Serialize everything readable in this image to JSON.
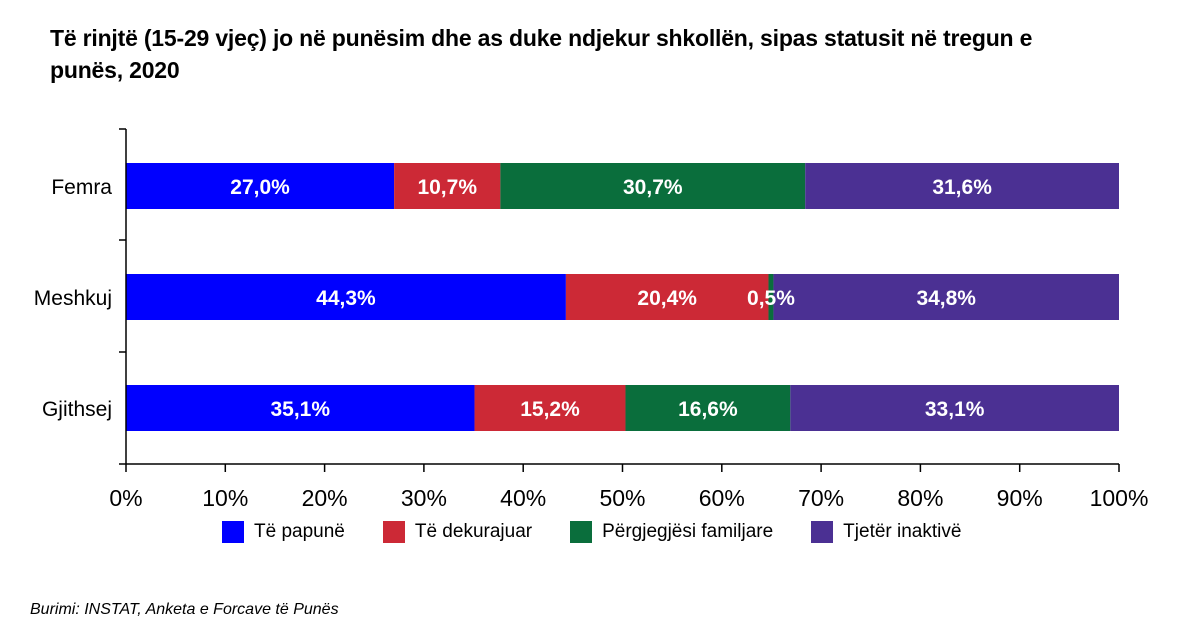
{
  "title": "Të rinjtë (15-29 vjeç) jo në punësim dhe as duke ndjekur shkollën, sipas statusit në tregun e punës, 2020",
  "source": "Burimi: INSTAT, Anketa e Forcave të Punës",
  "colors": {
    "te_papune": "#0000ff",
    "te_dekurajuar": "#cc2936",
    "pergjegjesi_familjare": "#0a6e3c",
    "tjeter_inaktive": "#4b3093"
  },
  "chart_data": {
    "type": "bar",
    "orientation": "horizontal",
    "stacked": true,
    "categories": [
      "Femra",
      "Meshkuj",
      "Gjithsej"
    ],
    "series": [
      {
        "name": "Të papunë",
        "values": [
          27.0,
          44.3,
          35.1
        ],
        "labels": [
          "27,0%",
          "44,3%",
          "35,1%"
        ],
        "color": "#0000ff"
      },
      {
        "name": "Të dekurajuar",
        "values": [
          10.7,
          20.4,
          15.2
        ],
        "labels": [
          "10,7%",
          "20,4%",
          "15,2%"
        ],
        "color": "#cc2936"
      },
      {
        "name": "Përgjegjësi familjare",
        "values": [
          30.7,
          0.5,
          16.6
        ],
        "labels": [
          "30,7%",
          "0,5%",
          "16,6%"
        ],
        "color": "#0a6e3c"
      },
      {
        "name": "Tjetër inaktivë",
        "values": [
          31.6,
          34.8,
          33.1
        ],
        "labels": [
          "31,6%",
          "34,8%",
          "33,1%"
        ],
        "color": "#4b3093"
      }
    ],
    "xlim": [
      0,
      100
    ],
    "xticks": [
      "0%",
      "10%",
      "20%",
      "30%",
      "40%",
      "50%",
      "60%",
      "70%",
      "80%",
      "90%",
      "100%"
    ],
    "grid": false,
    "legend_position": "bottom"
  }
}
